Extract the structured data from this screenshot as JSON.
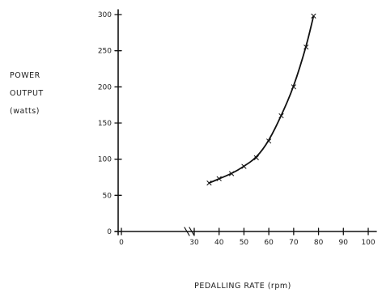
{
  "chart_data": {
    "type": "line",
    "title": "",
    "xlabel": "PEDALLING RATE (rpm)",
    "ylabel_lines": [
      "POWER",
      "OUTPUT",
      "(watts)"
    ],
    "xlim": [
      0,
      100
    ],
    "ylim": [
      0,
      300
    ],
    "x_ticks": [
      {
        "value": 0,
        "label": "0"
      },
      {
        "value": 30,
        "label": "30"
      },
      {
        "value": 40,
        "label": "40"
      },
      {
        "value": 50,
        "label": "50"
      },
      {
        "value": 60,
        "label": "60"
      },
      {
        "value": 70,
        "label": "70"
      },
      {
        "value": 80,
        "label": "80"
      },
      {
        "value": 90,
        "label": "90"
      },
      {
        "value": 100,
        "label": "100"
      }
    ],
    "y_ticks": [
      {
        "value": 0,
        "label": "0"
      },
      {
        "value": 50,
        "label": "50"
      },
      {
        "value": 100,
        "label": "100"
      },
      {
        "value": 150,
        "label": "150"
      },
      {
        "value": 200,
        "label": "200"
      },
      {
        "value": 250,
        "label": "250"
      },
      {
        "value": 300,
        "label": "300"
      }
    ],
    "axis_break_x": true,
    "grid": false,
    "series": [
      {
        "x": [
          36,
          40,
          45,
          50,
          55,
          60,
          65,
          70,
          75,
          78
        ],
        "y": [
          67,
          73,
          80,
          90,
          102,
          125,
          160,
          200,
          255,
          298
        ]
      }
    ],
    "colors": {
      "ink": "#111111",
      "background": "#ffffff"
    }
  }
}
